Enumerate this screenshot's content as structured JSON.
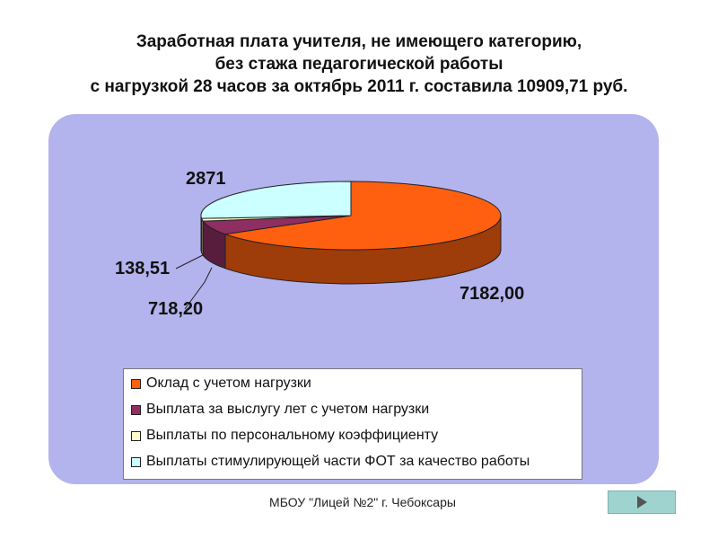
{
  "title": {
    "line1": "Заработная плата учителя, не имеющего  категорию,",
    "line2": "без стажа педагогической работы",
    "line3": "с нагрузкой 28 часов за октябрь 2011 г. составила 10909,71 руб."
  },
  "chart_data": {
    "type": "pie",
    "variant": "3d",
    "series": [
      {
        "name": "Оклад с учетом нагрузки",
        "value": 7182.0,
        "label": "7182,00",
        "color": "#ff6010"
      },
      {
        "name": "Выплата за выслугу лет с учетом нагрузки",
        "value": 718.2,
        "label": "718,20",
        "color": "#8e2e62"
      },
      {
        "name": "Выплаты по персональному коэффициенту",
        "value": 138.51,
        "label": "138,51",
        "color": "#ffffcc"
      },
      {
        "name": "Выплаты стимулирующей части ФОТ за качество работы",
        "value": 2871,
        "label": "2871",
        "color": "#ccffff"
      }
    ],
    "legend": "bottom"
  },
  "footer": {
    "text": "МБОУ \"Лицей №2\" г. Чебоксары"
  },
  "nav": {
    "icon": "play-right-icon"
  }
}
